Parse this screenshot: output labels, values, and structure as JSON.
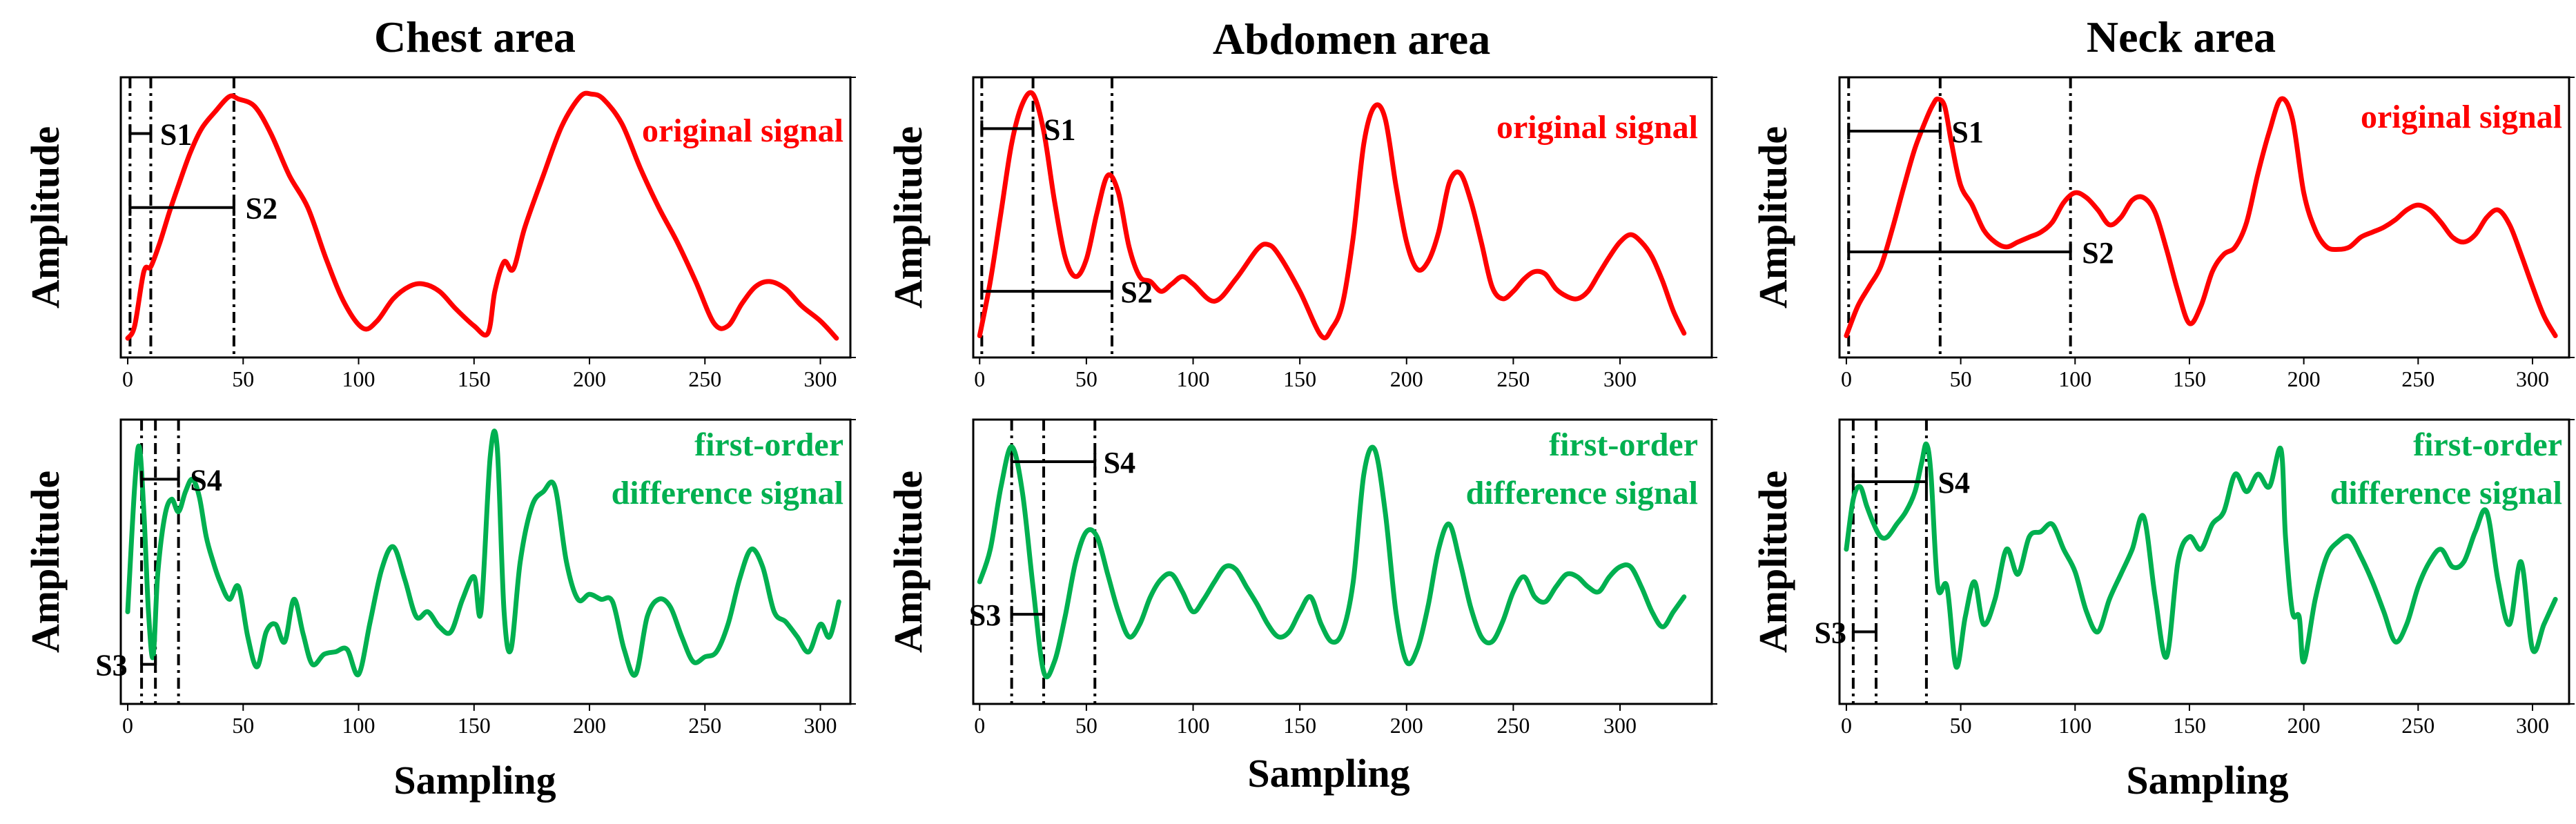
{
  "figure": {
    "columns": [
      {
        "title": "Chest area"
      },
      {
        "title": "Abdomen area"
      },
      {
        "title": "Neck area"
      }
    ],
    "ylabel": "Amplitude",
    "xlabel": "Sampling",
    "colors": {
      "original": "#ff0000",
      "difference": "#00b050",
      "annotation": "#000000"
    }
  },
  "chart_data": [
    {
      "panel": "chest-original",
      "type": "line",
      "title": "Chest area",
      "ylabel": "Amplitude",
      "xlabel": "",
      "legend": "original signal",
      "legend_lines": [
        "original signal"
      ],
      "color": "#ff0000",
      "xlim": [
        -3,
        313
      ],
      "ylim": [
        0,
        1
      ],
      "xticks": [
        0,
        50,
        100,
        150,
        200,
        250,
        300
      ],
      "x": [
        0,
        3,
        7,
        10,
        14,
        18,
        22,
        27,
        32,
        38,
        44,
        48,
        55,
        62,
        70,
        78,
        86,
        94,
        102,
        108,
        115,
        122,
        128,
        135,
        142,
        150,
        156,
        159,
        163,
        167,
        172,
        180,
        188,
        196,
        201,
        206,
        214,
        222,
        230,
        238,
        246,
        254,
        260,
        266,
        272,
        278,
        285,
        292,
        300,
        307
      ],
      "y": [
        0.01,
        0.06,
        0.28,
        0.3,
        0.4,
        0.52,
        0.63,
        0.76,
        0.86,
        0.93,
        0.99,
        0.98,
        0.95,
        0.84,
        0.67,
        0.54,
        0.33,
        0.15,
        0.05,
        0.08,
        0.17,
        0.22,
        0.23,
        0.2,
        0.13,
        0.06,
        0.03,
        0.2,
        0.32,
        0.29,
        0.46,
        0.67,
        0.87,
        0.99,
        1.0,
        0.98,
        0.88,
        0.7,
        0.54,
        0.4,
        0.24,
        0.07,
        0.06,
        0.15,
        0.22,
        0.24,
        0.21,
        0.14,
        0.08,
        0.01
      ],
      "vlines": [
        1,
        10,
        46
      ],
      "annotations": [
        {
          "label": "S1",
          "x0": 1,
          "x1": 10,
          "y": 0.84,
          "text_x": 14
        },
        {
          "label": "S2",
          "x0": 1,
          "x1": 46,
          "y": 0.54,
          "text_x": 51
        }
      ]
    },
    {
      "panel": "chest-difference",
      "type": "line",
      "title": "",
      "ylabel": "Amplitude",
      "xlabel": "",
      "legend": "first-order difference signal",
      "legend_lines": [
        "first-order",
        "difference signal"
      ],
      "color": "#00b050",
      "xlim": [
        -3,
        313
      ],
      "ylim": [
        0,
        1
      ],
      "xticks": [
        0,
        50,
        100,
        150,
        200,
        250,
        300
      ],
      "x": [
        0,
        3,
        5,
        7,
        9,
        11,
        13,
        16,
        19,
        22,
        25,
        28,
        31,
        34,
        37,
        40,
        44,
        48,
        52,
        56,
        60,
        64,
        68,
        72,
        76,
        80,
        85,
        90,
        95,
        100,
        105,
        110,
        115,
        120,
        125,
        130,
        135,
        140,
        145,
        150,
        153,
        157,
        160,
        163,
        166,
        170,
        175,
        180,
        185,
        190,
        195,
        200,
        205,
        210,
        215,
        220,
        225,
        230,
        235,
        240,
        245,
        250,
        255,
        260,
        265,
        270,
        275,
        280,
        285,
        290,
        295,
        300,
        304,
        308
      ],
      "y": [
        0.3,
        0.8,
        0.96,
        0.7,
        0.3,
        0.12,
        0.45,
        0.68,
        0.75,
        0.7,
        0.78,
        0.83,
        0.76,
        0.6,
        0.5,
        0.42,
        0.35,
        0.4,
        0.2,
        0.08,
        0.22,
        0.25,
        0.18,
        0.35,
        0.21,
        0.09,
        0.13,
        0.14,
        0.15,
        0.05,
        0.26,
        0.47,
        0.56,
        0.43,
        0.28,
        0.3,
        0.24,
        0.22,
        0.35,
        0.44,
        0.3,
        0.92,
        0.96,
        0.3,
        0.15,
        0.5,
        0.72,
        0.78,
        0.8,
        0.5,
        0.35,
        0.37,
        0.35,
        0.34,
        0.15,
        0.05,
        0.28,
        0.35,
        0.32,
        0.2,
        0.1,
        0.12,
        0.14,
        0.25,
        0.43,
        0.55,
        0.48,
        0.3,
        0.26,
        0.2,
        0.14,
        0.25,
        0.2,
        0.34
      ],
      "vlines": [
        6,
        12,
        22
      ],
      "annotations": [
        {
          "label": "S4",
          "x0": 6,
          "x1": 22,
          "y": 0.83,
          "text_x": 27
        },
        {
          "label": "S3",
          "x0": 6,
          "x1": 12,
          "y": 0.09,
          "text_x": -14
        }
      ]
    },
    {
      "panel": "abdomen-original",
      "type": "line",
      "title": "Abdomen area",
      "ylabel": "Amplitude",
      "xlabel": "",
      "legend": "original signal",
      "legend_lines": [
        "original signal"
      ],
      "color": "#ff0000",
      "xlim": [
        -3,
        343
      ],
      "ylim": [
        0,
        1
      ],
      "xticks": [
        0,
        50,
        100,
        150,
        200,
        250,
        300
      ],
      "x": [
        0,
        5,
        10,
        15,
        20,
        25,
        30,
        35,
        40,
        45,
        50,
        55,
        60,
        65,
        70,
        75,
        80,
        85,
        90,
        95,
        100,
        110,
        120,
        130,
        135,
        140,
        150,
        160,
        165,
        170,
        175,
        180,
        185,
        190,
        195,
        200,
        205,
        210,
        215,
        220,
        225,
        230,
        235,
        240,
        245,
        250,
        255,
        260,
        265,
        270,
        275,
        280,
        285,
        290,
        295,
        300,
        305,
        310,
        315,
        320,
        325,
        330
      ],
      "y": [
        0.02,
        0.24,
        0.52,
        0.8,
        0.96,
        1.0,
        0.85,
        0.57,
        0.34,
        0.26,
        0.33,
        0.52,
        0.67,
        0.6,
        0.38,
        0.26,
        0.24,
        0.2,
        0.23,
        0.26,
        0.23,
        0.16,
        0.25,
        0.37,
        0.39,
        0.35,
        0.2,
        0.02,
        0.05,
        0.15,
        0.42,
        0.8,
        0.95,
        0.9,
        0.63,
        0.4,
        0.29,
        0.32,
        0.44,
        0.64,
        0.68,
        0.57,
        0.4,
        0.22,
        0.17,
        0.2,
        0.25,
        0.28,
        0.27,
        0.21,
        0.18,
        0.17,
        0.2,
        0.27,
        0.34,
        0.4,
        0.43,
        0.4,
        0.34,
        0.24,
        0.12,
        0.03
      ],
      "vlines": [
        1,
        25,
        62
      ],
      "annotations": [
        {
          "label": "S1",
          "x0": 1,
          "x1": 25,
          "y": 0.86,
          "text_x": 30
        },
        {
          "label": "S2",
          "x0": 1,
          "x1": 62,
          "y": 0.2,
          "text_x": 66
        }
      ]
    },
    {
      "panel": "abdomen-difference",
      "type": "line",
      "title": "",
      "ylabel": "Amplitude",
      "xlabel": "",
      "legend": "first-order difference signal",
      "legend_lines": [
        "first-order",
        "difference signal"
      ],
      "color": "#00b050",
      "xlim": [
        -3,
        343
      ],
      "ylim": [
        0,
        1
      ],
      "xticks": [
        0,
        50,
        100,
        150,
        200,
        250,
        300
      ],
      "x": [
        0,
        5,
        10,
        15,
        20,
        25,
        30,
        35,
        40,
        45,
        50,
        55,
        60,
        65,
        70,
        75,
        80,
        85,
        90,
        95,
        100,
        105,
        110,
        115,
        120,
        125,
        130,
        135,
        140,
        145,
        150,
        155,
        160,
        165,
        170,
        175,
        180,
        185,
        190,
        195,
        200,
        205,
        210,
        215,
        220,
        225,
        230,
        235,
        240,
        245,
        250,
        255,
        260,
        265,
        270,
        275,
        280,
        285,
        290,
        295,
        300,
        305,
        310,
        315,
        320,
        325,
        330
      ],
      "y": [
        0.42,
        0.55,
        0.8,
        0.96,
        0.78,
        0.4,
        0.06,
        0.1,
        0.28,
        0.5,
        0.62,
        0.6,
        0.45,
        0.3,
        0.2,
        0.25,
        0.36,
        0.43,
        0.45,
        0.38,
        0.3,
        0.35,
        0.42,
        0.48,
        0.47,
        0.4,
        0.33,
        0.25,
        0.2,
        0.22,
        0.3,
        0.36,
        0.25,
        0.18,
        0.22,
        0.42,
        0.85,
        0.95,
        0.7,
        0.3,
        0.1,
        0.15,
        0.32,
        0.55,
        0.65,
        0.5,
        0.32,
        0.2,
        0.18,
        0.26,
        0.38,
        0.44,
        0.36,
        0.34,
        0.4,
        0.45,
        0.44,
        0.4,
        0.38,
        0.44,
        0.48,
        0.48,
        0.4,
        0.3,
        0.24,
        0.3,
        0.36
      ],
      "vlines": [
        15,
        30,
        54
      ],
      "annotations": [
        {
          "label": "S4",
          "x0": 15,
          "x1": 54,
          "y": 0.9,
          "text_x": 58
        },
        {
          "label": "S3",
          "x0": 15,
          "x1": 30,
          "y": 0.29,
          "text_x": -5
        }
      ]
    },
    {
      "panel": "neck-original",
      "type": "line",
      "title": "Neck area",
      "ylabel": "Amplitude",
      "xlabel": "",
      "legend": "original signal",
      "legend_lines": [
        "original signal"
      ],
      "color": "#ff0000",
      "xlim": [
        -3,
        316
      ],
      "ylim": [
        0,
        1
      ],
      "xticks": [
        0,
        50,
        100,
        150,
        200,
        250,
        300
      ],
      "x": [
        0,
        5,
        10,
        15,
        20,
        25,
        30,
        35,
        38,
        40,
        43,
        46,
        50,
        55,
        60,
        65,
        70,
        75,
        80,
        85,
        90,
        95,
        100,
        105,
        110,
        115,
        120,
        125,
        130,
        135,
        140,
        145,
        150,
        155,
        160,
        165,
        170,
        175,
        180,
        185,
        190,
        195,
        200,
        205,
        210,
        215,
        220,
        225,
        230,
        235,
        240,
        245,
        250,
        255,
        260,
        265,
        270,
        275,
        280,
        285,
        290,
        295,
        300,
        305,
        310
      ],
      "y": [
        0.02,
        0.14,
        0.22,
        0.3,
        0.45,
        0.62,
        0.78,
        0.9,
        0.96,
        0.98,
        0.95,
        0.8,
        0.63,
        0.55,
        0.45,
        0.4,
        0.38,
        0.4,
        0.42,
        0.44,
        0.48,
        0.56,
        0.6,
        0.58,
        0.53,
        0.47,
        0.5,
        0.57,
        0.58,
        0.52,
        0.37,
        0.2,
        0.07,
        0.14,
        0.28,
        0.35,
        0.38,
        0.48,
        0.68,
        0.85,
        0.98,
        0.9,
        0.6,
        0.45,
        0.38,
        0.37,
        0.38,
        0.42,
        0.44,
        0.46,
        0.49,
        0.53,
        0.55,
        0.53,
        0.48,
        0.42,
        0.4,
        0.43,
        0.5,
        0.53,
        0.47,
        0.35,
        0.22,
        0.1,
        0.02
      ],
      "vlines": [
        1,
        41,
        98
      ],
      "annotations": [
        {
          "label": "S1",
          "x0": 1,
          "x1": 41,
          "y": 0.85,
          "text_x": 46
        },
        {
          "label": "S2",
          "x0": 1,
          "x1": 98,
          "y": 0.36,
          "text_x": 103
        }
      ]
    },
    {
      "panel": "neck-difference",
      "type": "line",
      "title": "",
      "ylabel": "Amplitude",
      "xlabel": "",
      "legend": "first-order difference signal",
      "legend_lines": [
        "first-order",
        "difference signal"
      ],
      "color": "#00b050",
      "xlim": [
        -3,
        316
      ],
      "ylim": [
        0,
        1
      ],
      "xticks": [
        0,
        50,
        100,
        150,
        200,
        250,
        300
      ],
      "x": [
        0,
        3,
        6,
        9,
        12,
        15,
        18,
        22,
        26,
        30,
        33,
        35,
        37,
        40,
        44,
        48,
        52,
        56,
        60,
        65,
        70,
        75,
        80,
        85,
        90,
        95,
        100,
        105,
        110,
        115,
        120,
        125,
        130,
        135,
        140,
        145,
        150,
        155,
        160,
        165,
        170,
        175,
        180,
        185,
        190,
        192,
        195,
        198,
        200,
        205,
        210,
        215,
        220,
        225,
        230,
        235,
        240,
        245,
        250,
        255,
        260,
        265,
        270,
        275,
        280,
        285,
        290,
        295,
        300,
        305,
        310
      ],
      "y": [
        0.55,
        0.75,
        0.8,
        0.72,
        0.65,
        0.6,
        0.6,
        0.65,
        0.7,
        0.78,
        0.9,
        0.97,
        0.85,
        0.4,
        0.4,
        0.08,
        0.28,
        0.42,
        0.25,
        0.35,
        0.55,
        0.45,
        0.6,
        0.62,
        0.65,
        0.55,
        0.46,
        0.3,
        0.22,
        0.35,
        0.45,
        0.55,
        0.68,
        0.36,
        0.12,
        0.5,
        0.6,
        0.55,
        0.65,
        0.7,
        0.85,
        0.78,
        0.85,
        0.8,
        0.95,
        0.6,
        0.3,
        0.28,
        0.1,
        0.35,
        0.52,
        0.58,
        0.6,
        0.52,
        0.42,
        0.3,
        0.18,
        0.25,
        0.4,
        0.5,
        0.55,
        0.48,
        0.5,
        0.62,
        0.7,
        0.42,
        0.25,
        0.5,
        0.15,
        0.25,
        0.35
      ],
      "vlines": [
        3,
        13,
        35
      ],
      "annotations": [
        {
          "label": "S4",
          "x0": 3,
          "x1": 35,
          "y": 0.82,
          "text_x": 40
        },
        {
          "label": "S3",
          "x0": 3,
          "x1": 13,
          "y": 0.22,
          "text_x": -14
        }
      ]
    }
  ]
}
